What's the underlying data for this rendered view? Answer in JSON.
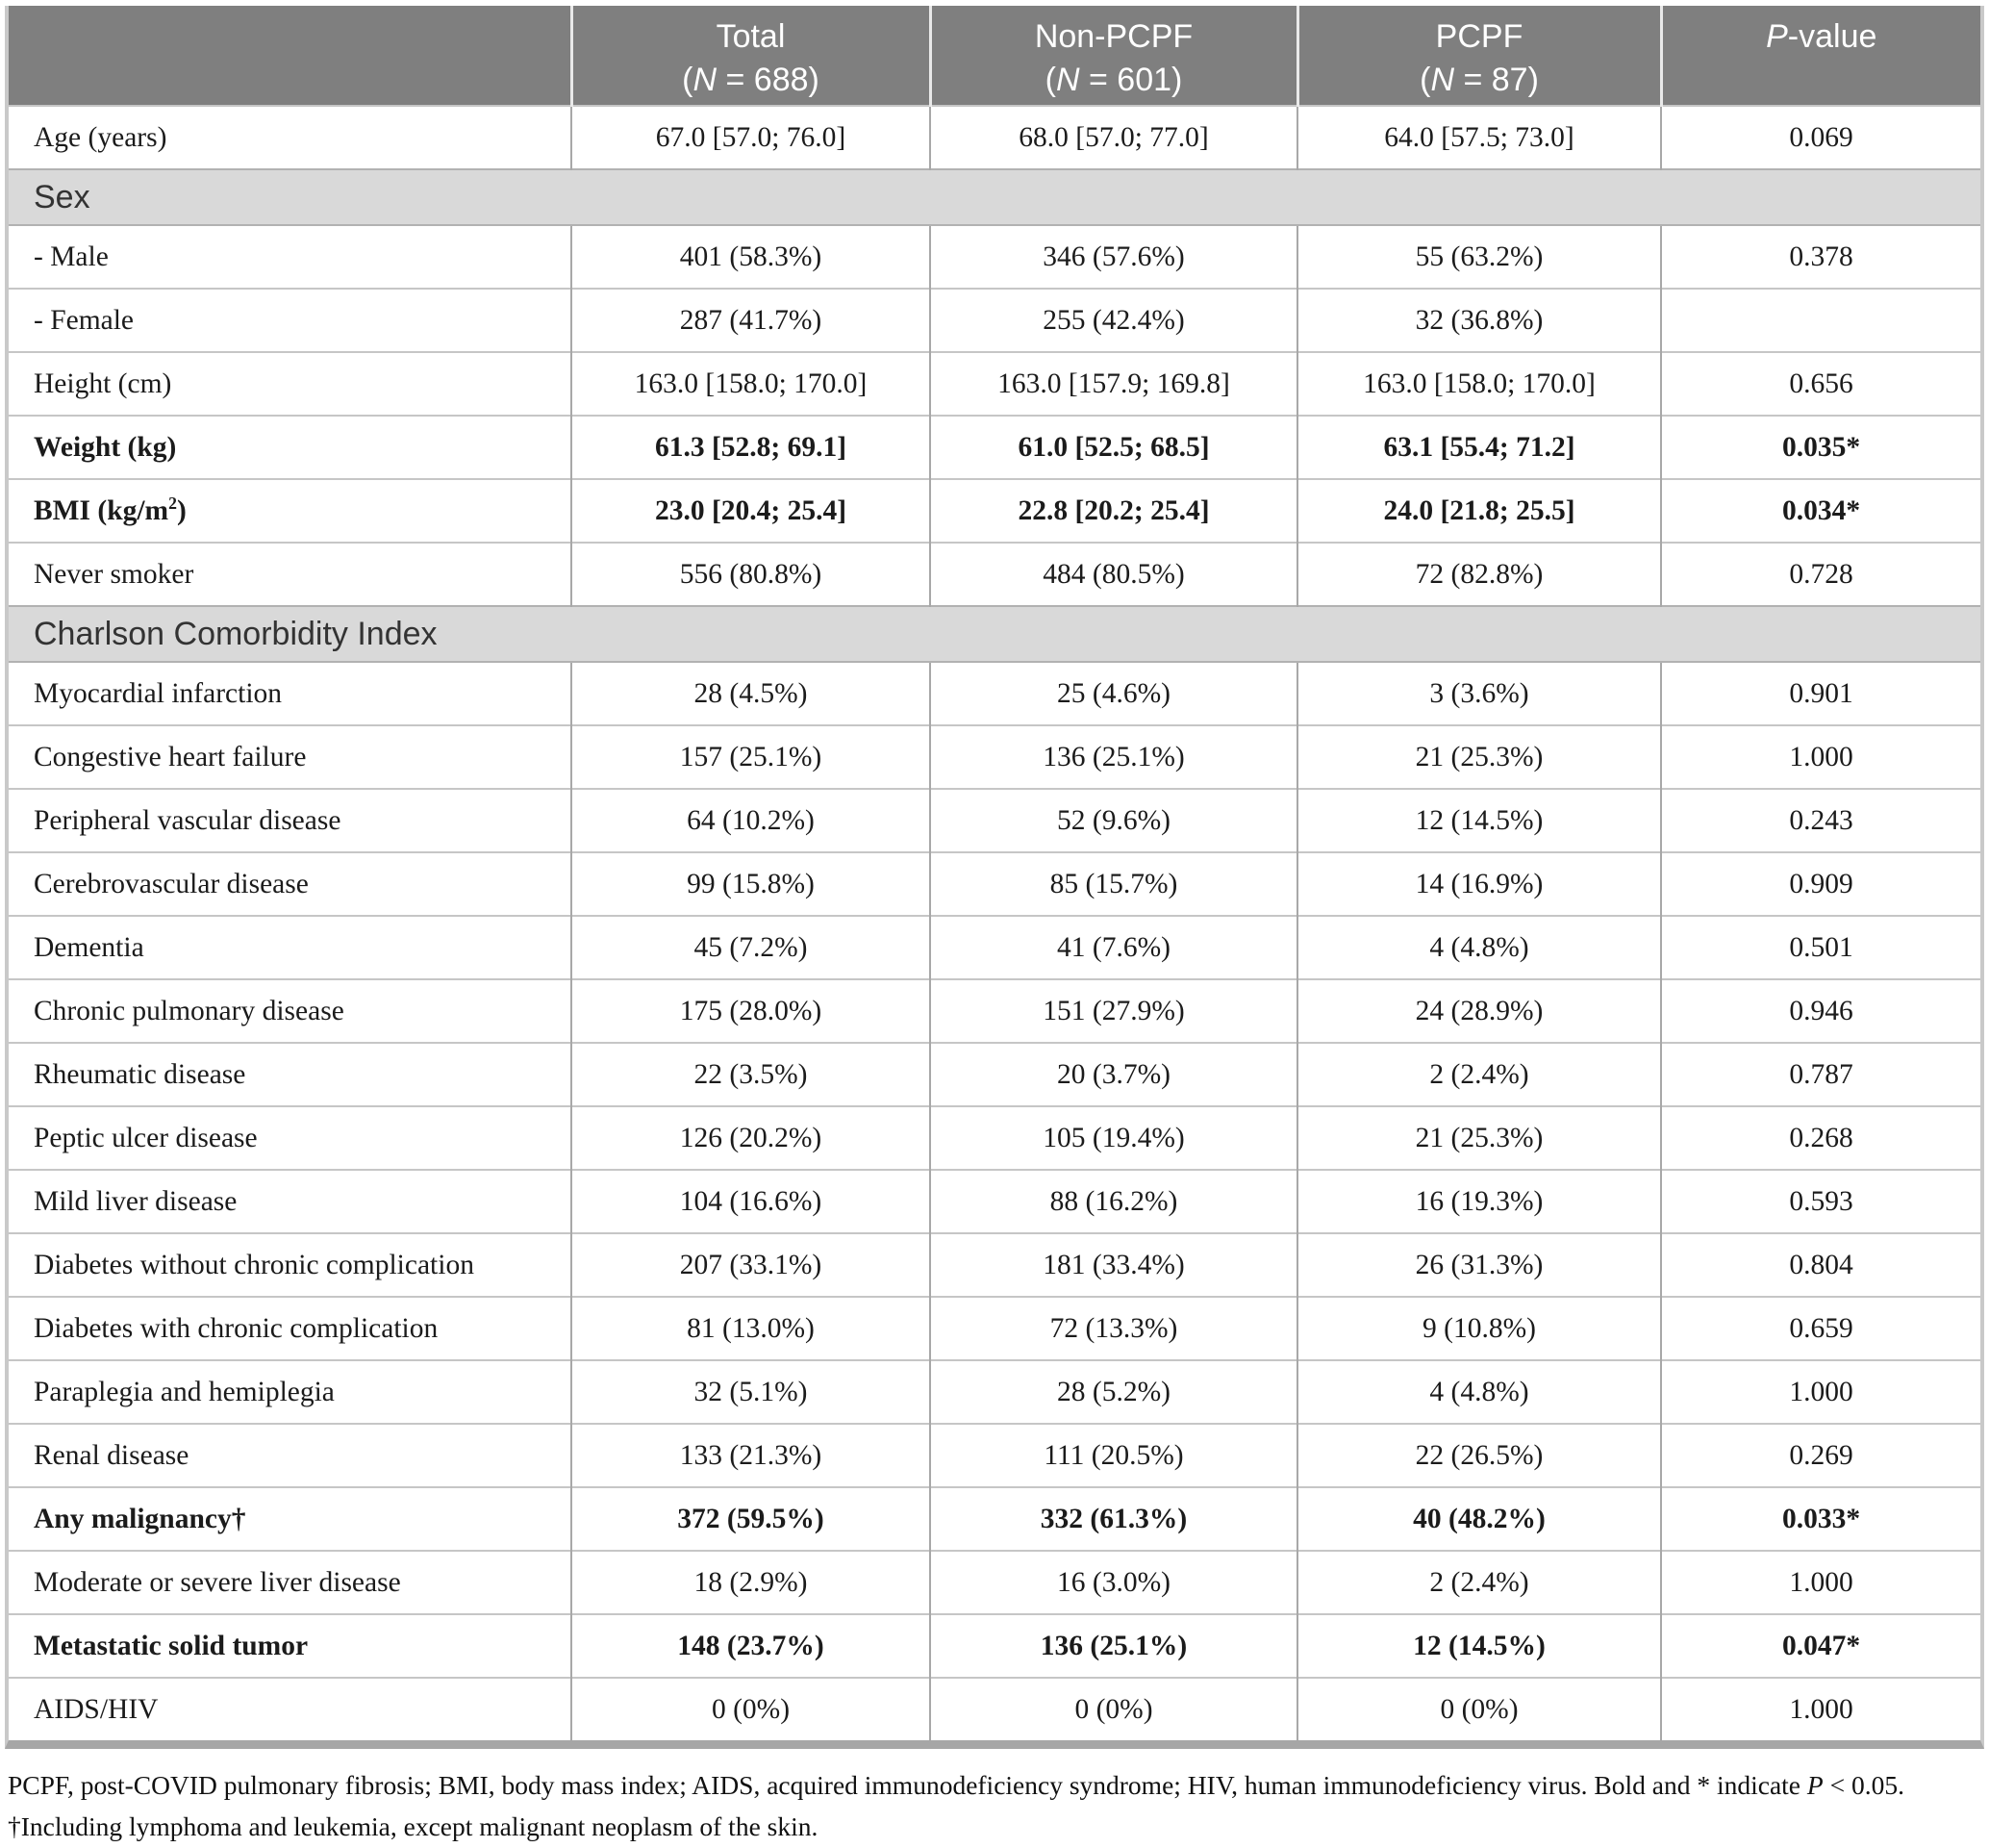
{
  "colors": {
    "header_bg": "#7f7f7f",
    "header_text": "#ffffff",
    "section_bg": "#d9d9d9",
    "row_bg": "#ffffff",
    "border_light": "#c6c6c6",
    "border_dark": "#a8a8a8",
    "text": "#1b1b1b"
  },
  "table": {
    "header": {
      "label_col": "",
      "cols": [
        {
          "title": "Total",
          "n_open": "(",
          "n_italic": "N",
          "n_rest": " = 688)"
        },
        {
          "title": "Non-PCPF",
          "n_open": "(",
          "n_italic": "N",
          "n_rest": " = 601)"
        },
        {
          "title": "PCPF",
          "n_open": "(",
          "n_italic": "N",
          "n_rest": " = 87)"
        },
        {
          "p_italic": "P",
          "p_rest": "-value"
        }
      ]
    },
    "rows": [
      {
        "type": "data",
        "label": "Age (years)",
        "values": [
          "67.0 [57.0; 76.0]",
          "68.0 [57.0; 77.0]",
          "64.0 [57.5; 73.0]",
          "0.069"
        ]
      },
      {
        "type": "section",
        "label": "Sex"
      },
      {
        "type": "data",
        "label": "- Male",
        "values": [
          "401 (58.3%)",
          "346 (57.6%)",
          "55 (63.2%)",
          "0.378"
        ]
      },
      {
        "type": "data",
        "label": "- Female",
        "values": [
          "287 (41.7%)",
          "255 (42.4%)",
          "32 (36.8%)",
          ""
        ]
      },
      {
        "type": "data",
        "label": "Height (cm)",
        "values": [
          "163.0 [158.0; 170.0]",
          "163.0 [157.9; 169.8]",
          "163.0 [158.0; 170.0]",
          "0.656"
        ]
      },
      {
        "type": "data",
        "label": "Weight (kg)",
        "bold": true,
        "values": [
          "61.3 [52.8; 69.1]",
          "61.0 [52.5; 68.5]",
          "63.1 [55.4; 71.2]",
          "0.035*"
        ]
      },
      {
        "type": "data",
        "label": "BMI (kg/m",
        "label_sup": "2",
        "label_after": ")",
        "bold": true,
        "values": [
          "23.0 [20.4; 25.4]",
          "22.8 [20.2; 25.4]",
          "24.0 [21.8; 25.5]",
          "0.034*"
        ]
      },
      {
        "type": "data",
        "label": "Never smoker",
        "values": [
          "556 (80.8%)",
          "484 (80.5%)",
          "72 (82.8%)",
          "0.728"
        ]
      },
      {
        "type": "section",
        "label": "Charlson Comorbidity Index"
      },
      {
        "type": "data",
        "label": "Myocardial infarction",
        "values": [
          "28 (4.5%)",
          "25 (4.6%)",
          "3 (3.6%)",
          "0.901"
        ]
      },
      {
        "type": "data",
        "label": "Congestive heart failure",
        "values": [
          "157 (25.1%)",
          "136 (25.1%)",
          "21 (25.3%)",
          "1.000"
        ]
      },
      {
        "type": "data",
        "label": "Peripheral vascular disease",
        "values": [
          "64 (10.2%)",
          "52 (9.6%)",
          "12 (14.5%)",
          "0.243"
        ]
      },
      {
        "type": "data",
        "label": "Cerebrovascular disease",
        "values": [
          "99 (15.8%)",
          "85 (15.7%)",
          "14 (16.9%)",
          "0.909"
        ]
      },
      {
        "type": "data",
        "label": "Dementia",
        "values": [
          "45 (7.2%)",
          "41 (7.6%)",
          "4 (4.8%)",
          "0.501"
        ]
      },
      {
        "type": "data",
        "label": "Chronic pulmonary disease",
        "values": [
          "175 (28.0%)",
          "151 (27.9%)",
          "24 (28.9%)",
          "0.946"
        ]
      },
      {
        "type": "data",
        "label": "Rheumatic disease",
        "values": [
          "22 (3.5%)",
          "20 (3.7%)",
          "2 (2.4%)",
          "0.787"
        ]
      },
      {
        "type": "data",
        "label": "Peptic ulcer disease",
        "values": [
          "126 (20.2%)",
          "105 (19.4%)",
          "21 (25.3%)",
          "0.268"
        ]
      },
      {
        "type": "data",
        "label": "Mild liver disease",
        "values": [
          "104 (16.6%)",
          "88 (16.2%)",
          "16 (19.3%)",
          "0.593"
        ]
      },
      {
        "type": "data",
        "label": "Diabetes without chronic complication",
        "values": [
          "207 (33.1%)",
          "181 (33.4%)",
          "26 (31.3%)",
          "0.804"
        ]
      },
      {
        "type": "data",
        "label": "Diabetes with chronic complication",
        "values": [
          "81 (13.0%)",
          "72 (13.3%)",
          "9 (10.8%)",
          "0.659"
        ]
      },
      {
        "type": "data",
        "label": "Paraplegia and hemiplegia",
        "values": [
          "32 (5.1%)",
          "28 (5.2%)",
          "4 (4.8%)",
          "1.000"
        ]
      },
      {
        "type": "data",
        "label": "Renal disease",
        "values": [
          "133 (21.3%)",
          "111 (20.5%)",
          "22 (26.5%)",
          "0.269"
        ]
      },
      {
        "type": "data",
        "label": "Any malignancy†",
        "bold": true,
        "values": [
          "372 (59.5%)",
          "332 (61.3%)",
          "40 (48.2%)",
          "0.033*"
        ]
      },
      {
        "type": "data",
        "label": "Moderate or severe liver disease",
        "values": [
          "18 (2.9%)",
          "16 (3.0%)",
          "2 (2.4%)",
          "1.000"
        ]
      },
      {
        "type": "data",
        "label": "Metastatic solid tumor",
        "bold": true,
        "values": [
          "148 (23.7%)",
          "136 (25.1%)",
          "12 (14.5%)",
          "0.047*"
        ]
      },
      {
        "type": "data",
        "label": "AIDS/HIV",
        "values": [
          "0 (0%)",
          "0 (0%)",
          "0 (0%)",
          "1.000"
        ]
      }
    ]
  },
  "footnote": {
    "pre": "PCPF, post-COVID pulmonary fibrosis; BMI, body mass index; AIDS, acquired immunodeficiency syndrome; HIV, human immunodeficiency virus. Bold and * indicate ",
    "p_italic": "P",
    "post": " < 0.05. †Including lymphoma and leukemia, except malignant neoplasm of the skin."
  }
}
